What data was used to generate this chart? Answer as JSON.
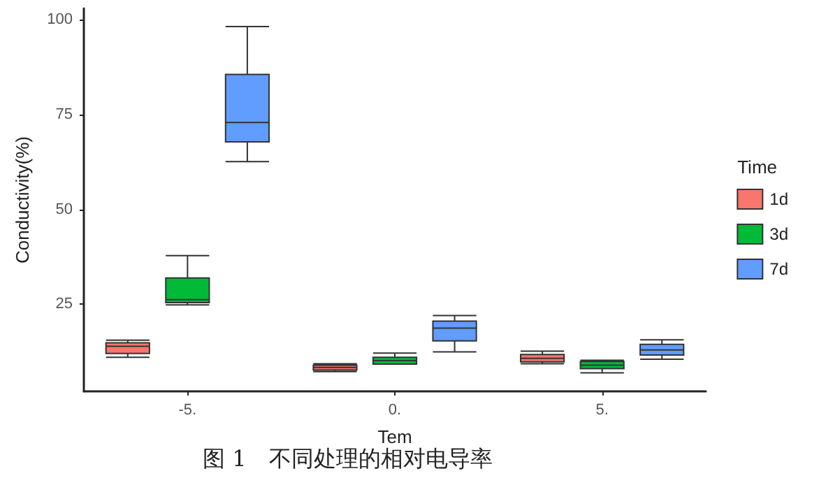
{
  "chart_data": {
    "type": "box",
    "categories": [
      "-5.",
      "0.",
      "5."
    ],
    "xlabel": "Tem",
    "ylabel": "Conductivity(%)",
    "legend_title": "Time",
    "ylim": [
      2,
      103
    ],
    "yticks": [
      25,
      50,
      75,
      100
    ],
    "grid": false,
    "legend": "right",
    "annotations": [
      "图 1　不同处理的相对电导率"
    ],
    "series": [
      {
        "name": "1d",
        "color": "#f8766d",
        "boxes": [
          {
            "low": 11.0,
            "q1": 12.0,
            "median": 13.9,
            "q3": 14.8,
            "high": 15.5
          },
          {
            "low": 7.2,
            "q1": 7.6,
            "median": 8.3,
            "q3": 8.9,
            "high": 9.3
          },
          {
            "low": 9.3,
            "q1": 9.8,
            "median": 10.7,
            "q3": 11.7,
            "high": 12.6
          }
        ]
      },
      {
        "name": "3d",
        "color": "#00ba38",
        "boxes": [
          {
            "low": 24.8,
            "q1": 25.4,
            "median": 26.2,
            "q3": 31.9,
            "high": 37.8
          },
          {
            "low": 9.2,
            "q1": 9.2,
            "median": 10.1,
            "q3": 11.0,
            "high": 12.1
          },
          {
            "low": 6.9,
            "q1": 8.0,
            "median": 8.9,
            "q3": 9.9,
            "high": 10.2
          }
        ]
      },
      {
        "name": "7d",
        "color": "#619cff",
        "boxes": [
          {
            "low": 62.6,
            "q1": 67.8,
            "median": 72.9,
            "q3": 85.6,
            "high": 98.2
          },
          {
            "low": 12.4,
            "q1": 15.3,
            "median": 18.7,
            "q3": 20.5,
            "high": 22.0
          },
          {
            "low": 10.5,
            "q1": 11.6,
            "median": 12.9,
            "q3": 14.4,
            "high": 15.6
          }
        ]
      }
    ]
  }
}
